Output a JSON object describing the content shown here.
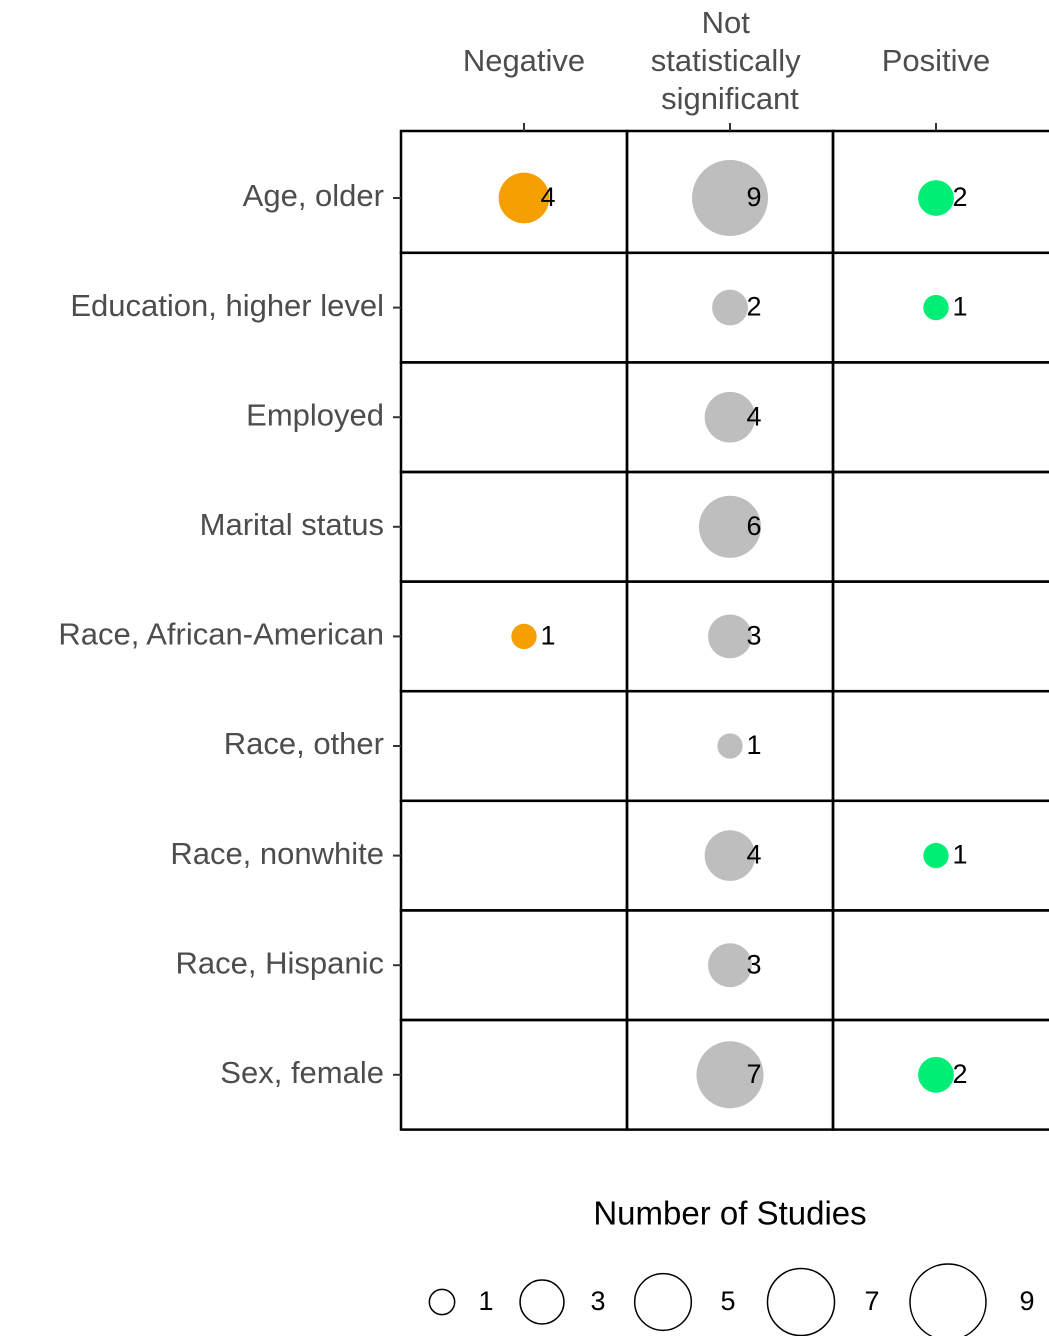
{
  "chart_data": {
    "type": "bubble",
    "rows": [
      "Age, older",
      "Education, higher level",
      "Employed",
      "Marital status",
      "Race, African-American",
      "Race, other",
      "Race, nonwhite",
      "Race, Hispanic",
      "Sex, female"
    ],
    "series": [
      {
        "name": "Negative",
        "color": "#f5a000",
        "values": [
          4,
          null,
          null,
          null,
          1,
          null,
          null,
          null,
          null
        ]
      },
      {
        "name": "Not statistically significant",
        "color": "#bebebe",
        "values": [
          9,
          2,
          4,
          6,
          3,
          1,
          4,
          3,
          7
        ]
      },
      {
        "name": "Positive",
        "color": "#00ee76",
        "values": [
          2,
          1,
          null,
          null,
          null,
          null,
          1,
          null,
          2
        ]
      }
    ],
    "legend": {
      "title": "Number of Studies",
      "sizes": [
        1,
        3,
        5,
        7,
        9
      ]
    }
  }
}
